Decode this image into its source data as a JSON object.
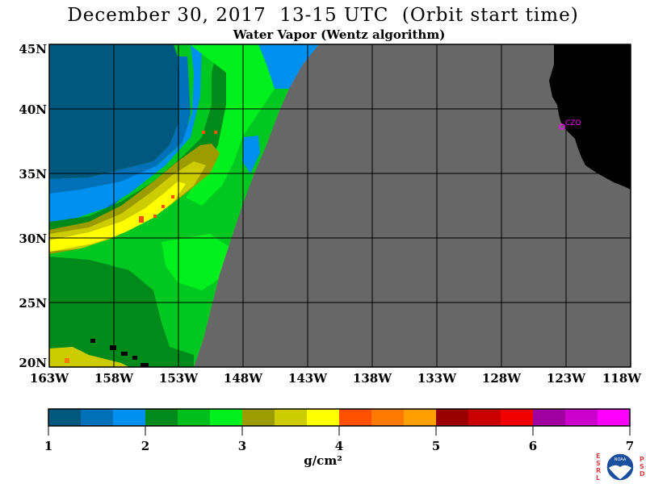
{
  "title": "December 30, 2017  13-15 UTC  (Orbit start time)",
  "subtitle": "Water Vapor (Wentz algorithm)",
  "lat_labels": [
    "45N",
    "40N",
    "35N",
    "30N",
    "25N",
    "20N"
  ],
  "lon_labels": [
    "163W",
    "158W",
    "153W",
    "148W",
    "143W",
    "138W",
    "133W",
    "128W",
    "123W",
    "118W"
  ],
  "station_label": "CZD",
  "colorbar": {
    "colors": [
      "#00587f",
      "#0070b8",
      "#0090f0",
      "#008a1a",
      "#00be1c",
      "#00f01e",
      "#9c9c00",
      "#cccc00",
      "#ffff00",
      "#ff5000",
      "#ff7a00",
      "#ffa000",
      "#9a0000",
      "#c80000",
      "#f00000",
      "#a000a0",
      "#cc00cc",
      "#ff00ff"
    ],
    "tick_labels": [
      "1",
      "2",
      "3",
      "4",
      "5",
      "6",
      "7"
    ],
    "unit": "g/cm²"
  },
  "logo": {
    "left_letters": [
      "E",
      "S",
      "R",
      "L"
    ],
    "right_letters": [
      "P",
      "S",
      "D"
    ],
    "center": "NOAA"
  },
  "colors": {
    "no_data": "#676767",
    "land": "#000000",
    "grid": "#000000",
    "station": "#ff00ff"
  }
}
